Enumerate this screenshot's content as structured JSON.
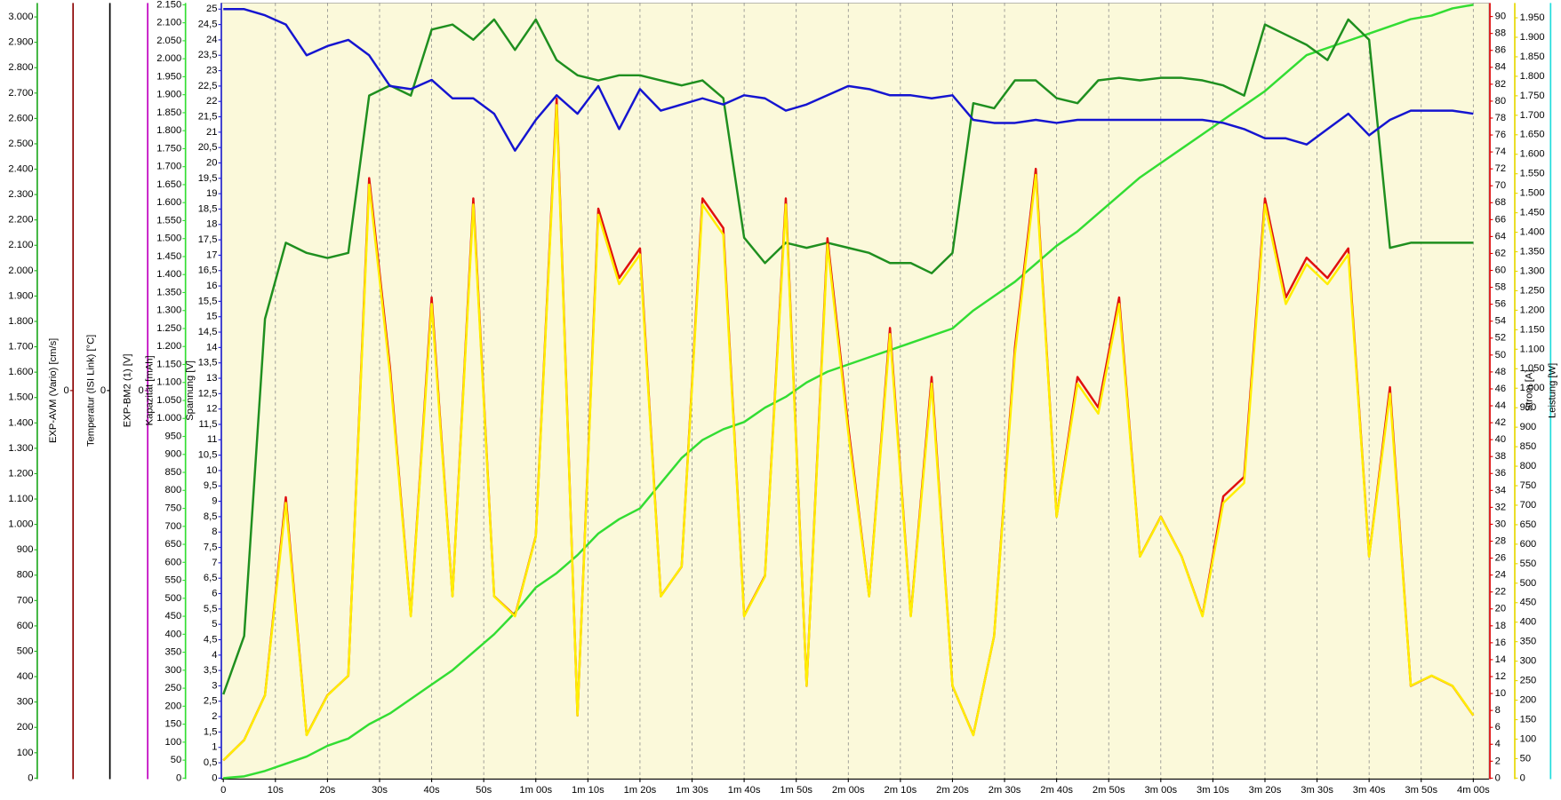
{
  "chart_data": {
    "type": "line",
    "x": [
      0,
      4,
      8,
      12,
      16,
      20,
      24,
      28,
      32,
      36,
      40,
      44,
      48,
      52,
      56,
      60,
      64,
      68,
      72,
      76,
      80,
      84,
      88,
      92,
      96,
      100,
      104,
      108,
      112,
      116,
      120,
      124,
      128,
      132,
      136,
      140,
      144,
      148,
      152,
      156,
      160,
      164,
      168,
      172,
      176,
      180,
      184,
      188,
      192,
      196,
      200,
      204,
      208,
      212,
      216,
      220,
      224,
      228,
      232,
      236,
      240
    ],
    "xlim": [
      0,
      243
    ],
    "xticks": [
      0,
      {
        "value": 10,
        "label": "10s"
      },
      {
        "value": 20,
        "label": "20s"
      },
      {
        "value": 30,
        "label": "30s"
      },
      {
        "value": 40,
        "label": "40s"
      },
      {
        "value": 50,
        "label": "50s"
      },
      {
        "value": 60,
        "label": "1m 00s"
      },
      {
        "value": 70,
        "label": "1m 10s"
      },
      {
        "value": 80,
        "label": "1m 20s"
      },
      {
        "value": 90,
        "label": "1m 30s"
      },
      {
        "value": 100,
        "label": "1m 40s"
      },
      {
        "value": 110,
        "label": "1m 50s"
      },
      {
        "value": 120,
        "label": "2m 00s"
      },
      {
        "value": 130,
        "label": "2m 10s"
      },
      {
        "value": 140,
        "label": "2m 20s"
      },
      {
        "value": 150,
        "label": "2m 30s"
      },
      {
        "value": 160,
        "label": "2m 40s"
      },
      {
        "value": 170,
        "label": "2m 50s"
      },
      {
        "value": 180,
        "label": "3m 00s"
      },
      {
        "value": 190,
        "label": "3m 10s"
      },
      {
        "value": 200,
        "label": "3m 20s"
      },
      {
        "value": 210,
        "label": "3m 30s"
      },
      {
        "value": 220,
        "label": "3m 40s"
      },
      {
        "value": 230,
        "label": "3m 50s"
      },
      {
        "value": 240,
        "label": "4m 00s"
      }
    ],
    "grid": true,
    "axes": [
      {
        "side": "left",
        "color": "#22aa22",
        "ylim": [
          0,
          3055
        ],
        "ticks": [
          0,
          100,
          200,
          300,
          400,
          500,
          600,
          700,
          800,
          900,
          {
            "value": 1000,
            "label": "1.000"
          },
          {
            "value": 1100,
            "label": "1.100"
          },
          {
            "value": 1200,
            "label": "1.200"
          },
          {
            "value": 1300,
            "label": "1.300"
          },
          {
            "value": 1400,
            "label": "1.400"
          },
          {
            "value": 1500,
            "label": "1.500"
          },
          {
            "value": 1600,
            "label": "1.600"
          },
          {
            "value": 1700,
            "label": "1.700"
          },
          {
            "value": 1800,
            "label": "1.800"
          },
          {
            "value": 1900,
            "label": "1.900"
          },
          {
            "value": 2000,
            "label": "2.000"
          },
          {
            "value": 2100,
            "label": "2.100"
          },
          {
            "value": 2200,
            "label": "2.200"
          },
          {
            "value": 2300,
            "label": "2.300"
          },
          {
            "value": 2400,
            "label": "2.400"
          },
          {
            "value": 2500,
            "label": "2.500"
          },
          {
            "value": 2600,
            "label": "2.600"
          },
          {
            "value": 2700,
            "label": "2.700"
          },
          {
            "value": 2800,
            "label": "2.800"
          },
          {
            "value": 2900,
            "label": "2.900"
          },
          {
            "value": 3000,
            "label": "3.000"
          }
        ]
      },
      {
        "side": "left",
        "color": "#8b0000",
        "title": "EXP-AVM (Vario) [cm/s]",
        "ylim": [
          -1,
          1
        ],
        "ticks": [
          0
        ]
      },
      {
        "side": "left",
        "color": "#000000",
        "title": "Temperatur (ISI Link) [°C]",
        "ylim": [
          -1,
          1
        ],
        "ticks": [
          0
        ]
      },
      {
        "side": "left",
        "color": "#c000c0",
        "title": "EXP-BM2 (1) [V]",
        "ylim": [
          -1,
          1
        ],
        "ticks": [
          0
        ]
      },
      {
        "side": "left",
        "color": "#33dd33",
        "title": "Kapazität [mAh]",
        "ylim": [
          0,
          2155
        ],
        "ticks": [
          0,
          50,
          100,
          150,
          200,
          250,
          300,
          350,
          400,
          450,
          500,
          550,
          600,
          650,
          700,
          750,
          800,
          850,
          900,
          950,
          {
            "value": 1000,
            "label": "1.000"
          },
          {
            "value": 1050,
            "label": "1.050"
          },
          {
            "value": 1100,
            "label": "1.100"
          },
          {
            "value": 1150,
            "label": "1.150"
          },
          {
            "value": 1200,
            "label": "1.200"
          },
          {
            "value": 1250,
            "label": "1.250"
          },
          {
            "value": 1300,
            "label": "1.300"
          },
          {
            "value": 1350,
            "label": "1.350"
          },
          {
            "value": 1400,
            "label": "1.400"
          },
          {
            "value": 1450,
            "label": "1.450"
          },
          {
            "value": 1500,
            "label": "1.500"
          },
          {
            "value": 1550,
            "label": "1.550"
          },
          {
            "value": 1600,
            "label": "1.600"
          },
          {
            "value": 1650,
            "label": "1.650"
          },
          {
            "value": 1700,
            "label": "1.700"
          },
          {
            "value": 1750,
            "label": "1.750"
          },
          {
            "value": 1800,
            "label": "1.800"
          },
          {
            "value": 1850,
            "label": "1.850"
          },
          {
            "value": 1900,
            "label": "1.900"
          },
          {
            "value": 1950,
            "label": "1.950"
          },
          {
            "value": 2000,
            "label": "2.000"
          },
          {
            "value": 2050,
            "label": "2.050"
          },
          {
            "value": 2100,
            "label": "2.100"
          },
          {
            "value": 2150,
            "label": "2.150"
          }
        ]
      },
      {
        "side": "left",
        "color": "#2222cc",
        "title": "Spannung [V]",
        "ylim": [
          0,
          25.2
        ],
        "ticks": [
          0,
          {
            "value": 0.5,
            "label": "0,5"
          },
          1,
          {
            "value": 1.5,
            "label": "1,5"
          },
          2,
          {
            "value": 2.5,
            "label": "2,5"
          },
          3,
          {
            "value": 3.5,
            "label": "3,5"
          },
          4,
          {
            "value": 4.5,
            "label": "4,5"
          },
          5,
          {
            "value": 5.5,
            "label": "5,5"
          },
          6,
          {
            "value": 6.5,
            "label": "6,5"
          },
          7,
          {
            "value": 7.5,
            "label": "7,5"
          },
          8,
          {
            "value": 8.5,
            "label": "8,5"
          },
          9,
          {
            "value": 9.5,
            "label": "9,5"
          },
          10,
          {
            "value": 10.5,
            "label": "10,5"
          },
          11,
          {
            "value": 11.5,
            "label": "11,5"
          },
          12,
          {
            "value": 12.5,
            "label": "12,5"
          },
          13,
          {
            "value": 13.5,
            "label": "13,5"
          },
          14,
          {
            "value": 14.5,
            "label": "14,5"
          },
          15,
          {
            "value": 15.5,
            "label": "15,5"
          },
          16,
          {
            "value": 16.5,
            "label": "16,5"
          },
          17,
          {
            "value": 17.5,
            "label": "17,5"
          },
          18,
          {
            "value": 18.5,
            "label": "18,5"
          },
          19,
          {
            "value": 19.5,
            "label": "19,5"
          },
          20,
          {
            "value": 20.5,
            "label": "20,5"
          },
          21,
          {
            "value": 21.5,
            "label": "21,5"
          },
          22,
          {
            "value": 22.5,
            "label": "22,5"
          },
          23,
          {
            "value": 23.5,
            "label": "23,5"
          },
          24,
          {
            "value": 24.5,
            "label": "24,5"
          },
          25
        ]
      },
      {
        "side": "right",
        "color": "#dd0000",
        "title": "Strom [A]",
        "ylim": [
          0,
          91.6
        ],
        "ticks": [
          0,
          2,
          4,
          6,
          8,
          10,
          12,
          14,
          16,
          18,
          20,
          22,
          24,
          26,
          28,
          30,
          32,
          34,
          36,
          38,
          40,
          42,
          44,
          46,
          48,
          50,
          52,
          54,
          56,
          58,
          60,
          62,
          64,
          66,
          68,
          70,
          72,
          74,
          76,
          78,
          80,
          82,
          84,
          86,
          88,
          90
        ]
      },
      {
        "side": "right",
        "color": "#e6d800",
        "title": "Leistung [W]",
        "ylim": [
          0,
          1988
        ],
        "ticks": [
          0,
          50,
          100,
          150,
          200,
          250,
          300,
          350,
          400,
          450,
          500,
          550,
          600,
          650,
          700,
          750,
          800,
          850,
          900,
          950,
          {
            "value": 1000,
            "label": "1.000"
          },
          {
            "value": 1050,
            "label": "1.050"
          },
          {
            "value": 1100,
            "label": "1.100"
          },
          {
            "value": 1150,
            "label": "1.150"
          },
          {
            "value": 1200,
            "label": "1.200"
          },
          {
            "value": 1250,
            "label": "1.250"
          },
          {
            "value": 1300,
            "label": "1.300"
          },
          {
            "value": 1350,
            "label": "1.350"
          },
          {
            "value": 1400,
            "label": "1.400"
          },
          {
            "value": 1450,
            "label": "1.450"
          },
          {
            "value": 1500,
            "label": "1.500"
          },
          {
            "value": 1550,
            "label": "1.550"
          },
          {
            "value": 1600,
            "label": "1.600"
          },
          {
            "value": 1650,
            "label": "1.650"
          },
          {
            "value": 1700,
            "label": "1.700"
          },
          {
            "value": 1750,
            "label": "1.750"
          },
          {
            "value": 1800,
            "label": "1.800"
          },
          {
            "value": 1850,
            "label": "1.850"
          },
          {
            "value": 1900,
            "label": "1.900"
          },
          {
            "value": 1950,
            "label": "1.950"
          }
        ]
      }
    ],
    "series": [
      {
        "color": "#33dd33",
        "axis": 4,
        "values": [
          0,
          5,
          20,
          40,
          60,
          90,
          110,
          150,
          180,
          220,
          260,
          300,
          350,
          400,
          460,
          530,
          570,
          620,
          680,
          720,
          750,
          820,
          890,
          940,
          970,
          990,
          1030,
          1060,
          1100,
          1130,
          1150,
          1170,
          1190,
          1210,
          1230,
          1250,
          1300,
          1340,
          1380,
          1430,
          1480,
          1520,
          1570,
          1620,
          1670,
          1710,
          1750,
          1790,
          1830,
          1870,
          1910,
          1960,
          2010,
          2030,
          2050,
          2070,
          2090,
          2110,
          2120,
          2140,
          2150
        ]
      },
      {
        "color": "#1f8f1f",
        "axis": 0,
        "values": [
          330,
          560,
          1810,
          2110,
          2070,
          2050,
          2070,
          2690,
          2730,
          2690,
          2950,
          2970,
          2910,
          2990,
          2870,
          2990,
          2830,
          2770,
          2750,
          2770,
          2770,
          2750,
          2730,
          2750,
          2680,
          2130,
          2030,
          2110,
          2090,
          2110,
          2090,
          2070,
          2030,
          2030,
          1990,
          2070,
          2660,
          2640,
          2750,
          2750,
          2680,
          2660,
          2750,
          2760,
          2750,
          2760,
          2760,
          2750,
          2730,
          2690,
          2970,
          2930,
          2890,
          2830,
          2990,
          2910,
          2090,
          2110,
          2110,
          2110,
          2110
        ]
      },
      {
        "color": "#1515d0",
        "axis": 5,
        "values": [
          25.0,
          25.0,
          24.8,
          24.5,
          23.5,
          23.8,
          24.0,
          23.5,
          22.5,
          22.4,
          22.7,
          22.1,
          22.1,
          21.6,
          20.4,
          21.4,
          22.2,
          21.6,
          22.5,
          21.1,
          22.4,
          21.7,
          21.9,
          22.1,
          21.9,
          22.2,
          22.1,
          21.7,
          21.9,
          22.2,
          22.5,
          22.4,
          22.2,
          22.2,
          22.1,
          22.2,
          21.4,
          21.3,
          21.3,
          21.4,
          21.3,
          21.4,
          21.4,
          21.4,
          21.4,
          21.4,
          21.4,
          21.4,
          21.3,
          21.1,
          20.8,
          20.8,
          20.6,
          21.1,
          21.6,
          20.9,
          21.4,
          21.7,
          21.7,
          21.7,
          21.6
        ]
      },
      {
        "color": "#e01010",
        "axis": 6,
        "values": [
          2.1,
          4.5,
          9.8,
          33.2,
          5.1,
          9.8,
          12.1,
          70.9,
          48.5,
          19.2,
          56.8,
          21.5,
          68.5,
          21.5,
          19.2,
          28.6,
          80.3,
          7.4,
          67.3,
          59.1,
          62.6,
          21.5,
          25.0,
          68.5,
          65.0,
          19.2,
          23.9,
          68.5,
          10.9,
          63.8,
          41.5,
          21.5,
          53.2,
          19.2,
          47.4,
          10.9,
          5.1,
          16.8,
          50.9,
          72.0,
          30.9,
          47.4,
          43.8,
          56.8,
          26.2,
          30.9,
          26.2,
          19.2,
          33.3,
          35.6,
          68.5,
          56.8,
          61.5,
          59.1,
          62.6,
          26.2,
          46.2,
          10.9,
          12.1,
          10.9,
          7.4
        ]
      },
      {
        "color": "#ffee00",
        "axis": 7,
        "values": [
          46,
          97,
          212,
          706,
          110,
          212,
          263,
          1522,
          1037,
          415,
          1216,
          466,
          1471,
          466,
          415,
          619,
          1726,
          161,
          1445,
          1267,
          1343,
          466,
          543,
          1471,
          1394,
          415,
          517,
          1471,
          237,
          1369,
          885,
          466,
          1139,
          415,
          1012,
          237,
          110,
          365,
          1088,
          1547,
          670,
          1012,
          935,
          1216,
          568,
          670,
          568,
          415,
          706,
          757,
          1471,
          1216,
          1318,
          1267,
          1343,
          568,
          986,
          237,
          263,
          237,
          161
        ]
      }
    ]
  }
}
